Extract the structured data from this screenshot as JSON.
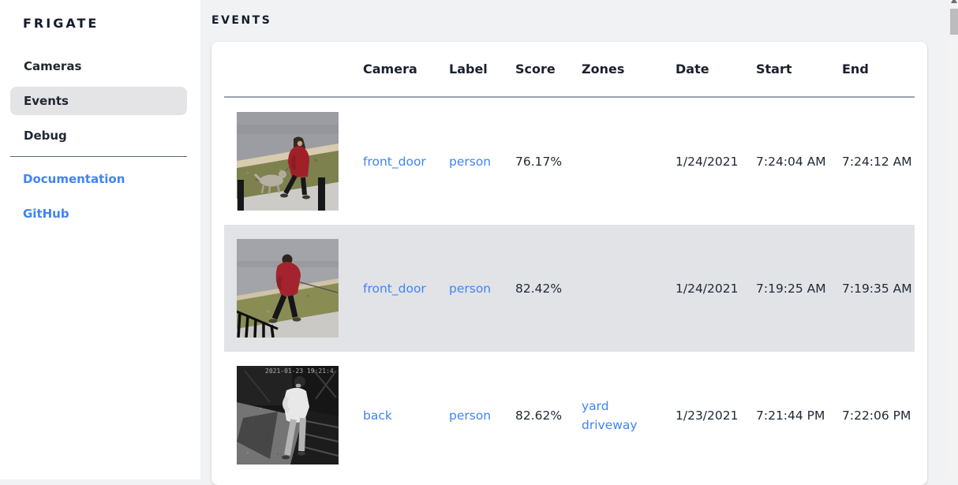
{
  "app": {
    "title": "FRIGATE"
  },
  "sidebar": {
    "items": [
      {
        "label": "Cameras",
        "active": false
      },
      {
        "label": "Events",
        "active": true
      },
      {
        "label": "Debug",
        "active": false
      }
    ],
    "links": [
      {
        "label": "Documentation"
      },
      {
        "label": "GitHub"
      }
    ]
  },
  "page": {
    "title": "EVENTS"
  },
  "table": {
    "columns": [
      "Camera",
      "Label",
      "Score",
      "Zones",
      "Date",
      "Start",
      "End"
    ],
    "rows": [
      {
        "camera": "front_door",
        "label": "person",
        "score": "76.17%",
        "zones": [],
        "date": "1/24/2021",
        "start": "7:24:04 AM",
        "end": "7:24:12 AM",
        "selected": false,
        "thumb_id": "thumb-person-red-coat-dog",
        "thumbnail_description": "person in red coat walking a dog on a sidewalk in daylight"
      },
      {
        "camera": "front_door",
        "label": "person",
        "score": "82.42%",
        "zones": [],
        "date": "1/24/2021",
        "start": "7:19:25 AM",
        "end": "7:19:35 AM",
        "selected": true,
        "thumb_id": "thumb-person-red-hoodie",
        "thumbnail_description": "person in red hooded jacket walking a dog past a railing"
      },
      {
        "camera": "back",
        "label": "person",
        "score": "82.62%",
        "zones": [
          "yard",
          "driveway"
        ],
        "date": "1/23/2021",
        "start": "7:21:44 PM",
        "end": "7:22:06 PM",
        "selected": false,
        "thumb_id": "thumb-person-night-ir",
        "thumbnail_overlay": "2021-01-23 19:21:4",
        "thumbnail_description": "black-and-white infrared night image of person in light shirt beside a trailer"
      }
    ]
  },
  "colors": {
    "link_blue": "#3f83f8",
    "text_dark": "#1a202c",
    "bg_main": "#f1f2f4",
    "bg_card": "#ffffff",
    "row_selected_bg": "#e2e3e7",
    "nav_active_bg": "#e4e4e6",
    "header_border": "#9ca3af",
    "scrollbar_thumb": "#bcbcbe"
  }
}
